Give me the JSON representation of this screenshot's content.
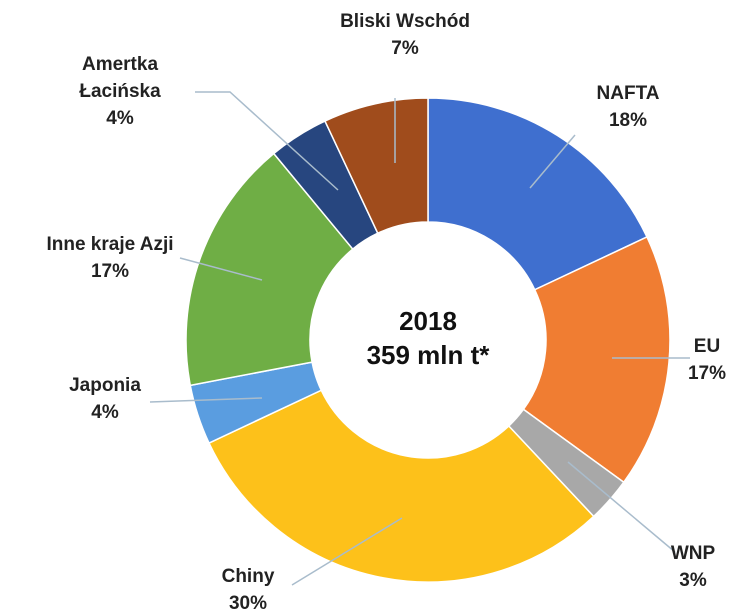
{
  "chart_data": {
    "type": "donut",
    "categories": [
      "NAFTA",
      "EU",
      "WNP",
      "Chiny",
      "Japonia",
      "Inne kraje Azji",
      "Amertka\nŁacińska",
      "Bliski Wschód"
    ],
    "values": [
      18,
      17,
      3,
      30,
      4,
      17,
      4,
      7
    ],
    "value_labels": [
      "18%",
      "17%",
      "3%",
      "30%",
      "4%",
      "17%",
      "4%",
      "7%"
    ],
    "colors": [
      "#3f6fcf",
      "#f07d32",
      "#a8a8a8",
      "#fdc11a",
      "#5a9de0",
      "#6fae45",
      "#27467f",
      "#a04c1c"
    ],
    "center_labels": [
      "2018",
      "359 mln t*"
    ]
  }
}
